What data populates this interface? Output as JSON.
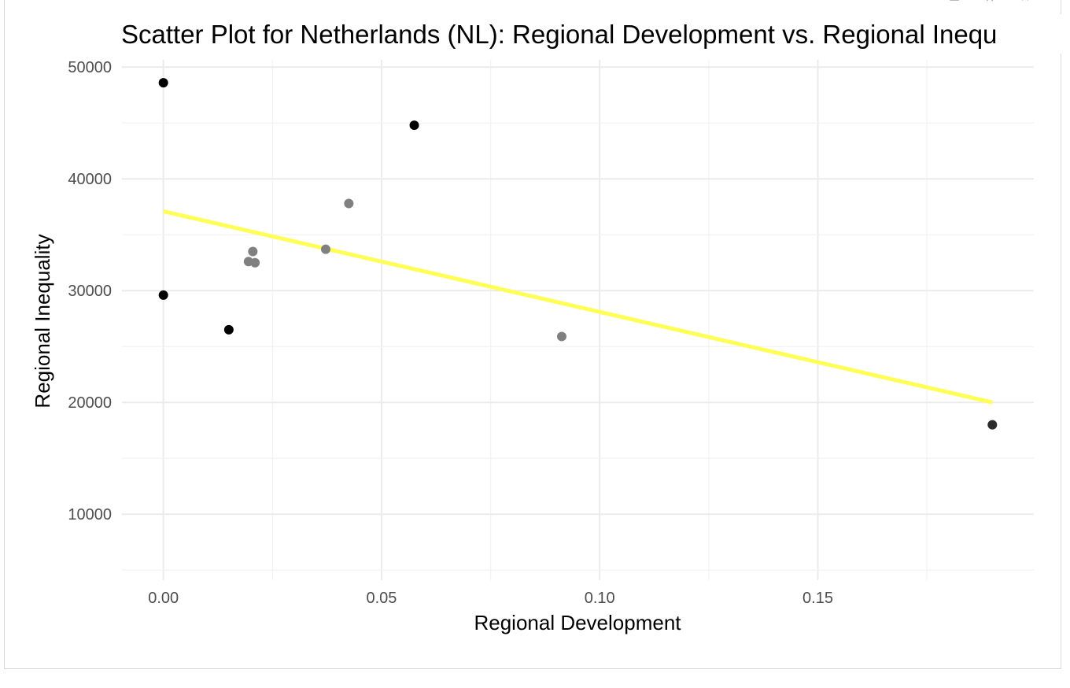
{
  "window": {
    "controls": [
      {
        "name": "export-icon",
        "glyph": "▭"
      },
      {
        "name": "minimize-icon",
        "glyph": "⨯"
      },
      {
        "name": "close-icon",
        "glyph": "✕"
      }
    ]
  },
  "chart_data": {
    "type": "scatter",
    "title": "Scatter Plot for Netherlands (NL): Regional Development vs. Regional Inequ",
    "xlabel": "Regional Development",
    "ylabel": "Regional Inequality",
    "xlim": [
      -0.0095,
      0.1995
    ],
    "ylim": [
      4100,
      50650
    ],
    "x_ticks": [
      0.0,
      0.05,
      0.1,
      0.15
    ],
    "x_tick_labels": [
      "0.00",
      "0.05",
      "0.10",
      "0.15"
    ],
    "y_ticks": [
      10000,
      20000,
      30000,
      40000,
      50000
    ],
    "y_tick_labels": [
      "10000",
      "20000",
      "30000",
      "40000",
      "50000"
    ],
    "grid": true,
    "points": [
      {
        "x": 0.0,
        "y": 48600,
        "color": "#000000"
      },
      {
        "x": 0.0,
        "y": 29600,
        "color": "#000000"
      },
      {
        "x": 0.015,
        "y": 26500,
        "color": "#000000"
      },
      {
        "x": 0.0195,
        "y": 32600,
        "color": "#808080"
      },
      {
        "x": 0.0205,
        "y": 33500,
        "color": "#808080"
      },
      {
        "x": 0.021,
        "y": 32500,
        "color": "#808080"
      },
      {
        "x": 0.0372,
        "y": 33700,
        "color": "#808080"
      },
      {
        "x": 0.0425,
        "y": 37800,
        "color": "#808080"
      },
      {
        "x": 0.0575,
        "y": 44800,
        "color": "#000000"
      },
      {
        "x": 0.0913,
        "y": 25900,
        "color": "#808080"
      },
      {
        "x": 0.19,
        "y": 18000,
        "color": "#2b2b2b"
      }
    ],
    "trend_line": {
      "x": [
        0.0,
        0.19
      ],
      "y": [
        37100,
        20000
      ],
      "color": "#ffff55"
    }
  }
}
